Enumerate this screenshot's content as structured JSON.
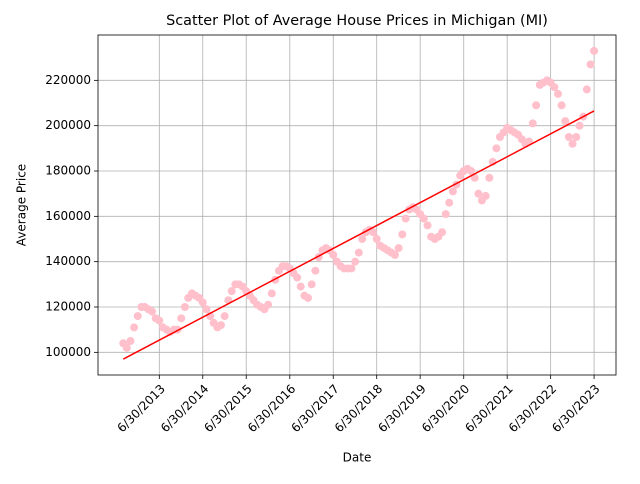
{
  "chart_data": {
    "type": "scatter",
    "title": "Scatter Plot of Average House Prices in Michigan (MI)",
    "x_label": "Date",
    "y_label": "Average Price",
    "x": [
      "8/31/2012",
      "9/30/2012",
      "10/31/2012",
      "11/30/2012",
      "12/31/2012",
      "1/31/2013",
      "2/28/2013",
      "3/31/2013",
      "4/30/2013",
      "5/31/2013",
      "6/30/2013",
      "7/31/2013",
      "8/31/2013",
      "9/30/2013",
      "10/31/2013",
      "11/30/2013",
      "12/31/2013",
      "1/31/2014",
      "2/28/2014",
      "3/31/2014",
      "4/30/2014",
      "5/31/2014",
      "6/30/2014",
      "7/31/2014",
      "8/31/2014",
      "9/30/2014",
      "10/31/2014",
      "11/30/2014",
      "12/31/2014",
      "1/31/2015",
      "2/28/2015",
      "3/31/2015",
      "4/30/2015",
      "5/31/2015",
      "6/30/2015",
      "7/31/2015",
      "8/31/2015",
      "9/30/2015",
      "10/31/2015",
      "11/30/2015",
      "12/31/2015",
      "1/31/2016",
      "2/29/2016",
      "3/31/2016",
      "4/30/2016",
      "5/31/2016",
      "6/30/2016",
      "7/31/2016",
      "8/31/2016",
      "9/30/2016",
      "10/31/2016",
      "11/30/2016",
      "12/31/2016",
      "1/31/2017",
      "2/28/2017",
      "3/31/2017",
      "4/30/2017",
      "5/31/2017",
      "6/30/2017",
      "7/31/2017",
      "8/31/2017",
      "9/30/2017",
      "10/31/2017",
      "11/30/2017",
      "12/31/2017",
      "1/31/2018",
      "2/28/2018",
      "3/31/2018",
      "4/30/2018",
      "5/31/2018",
      "6/30/2018",
      "7/31/2018",
      "8/31/2018",
      "9/30/2018",
      "10/31/2018",
      "11/30/2018",
      "12/31/2018",
      "1/31/2019",
      "2/28/2019",
      "3/31/2019",
      "4/30/2019",
      "5/31/2019",
      "6/30/2019",
      "7/31/2019",
      "8/31/2019",
      "9/30/2019",
      "10/31/2019",
      "11/30/2019",
      "12/31/2019",
      "1/31/2020",
      "2/29/2020",
      "3/31/2020",
      "4/30/2020",
      "5/31/2020",
      "6/30/2020",
      "7/31/2020",
      "8/31/2020",
      "9/30/2020",
      "10/31/2020",
      "11/30/2020",
      "12/31/2020",
      "1/31/2021",
      "2/28/2021",
      "3/31/2021",
      "4/30/2021",
      "5/31/2021",
      "6/30/2021",
      "7/31/2021",
      "8/31/2021",
      "9/30/2021",
      "10/31/2021",
      "11/30/2021",
      "12/31/2021",
      "1/31/2022",
      "2/28/2022",
      "3/31/2022",
      "4/30/2022",
      "5/31/2022",
      "6/30/2022",
      "7/31/2022",
      "8/31/2022",
      "9/30/2022",
      "10/31/2022",
      "11/30/2022",
      "12/31/2022",
      "1/31/2023",
      "2/28/2023",
      "3/31/2023",
      "4/30/2023",
      "5/31/2023",
      "6/30/2023"
    ],
    "values": [
      104000,
      102000,
      105000,
      111000,
      116000,
      120000,
      120000,
      119000,
      118000,
      115000,
      114000,
      111000,
      110000,
      109000,
      110000,
      110000,
      115000,
      120000,
      124000,
      126000,
      125000,
      124000,
      122000,
      119000,
      116000,
      113000,
      111000,
      112000,
      116000,
      123000,
      127000,
      130000,
      130000,
      129000,
      127000,
      125000,
      123000,
      121000,
      120000,
      119000,
      121000,
      126000,
      132000,
      136000,
      138000,
      138000,
      137000,
      135000,
      133000,
      129000,
      125000,
      124000,
      130000,
      136000,
      142000,
      145000,
      146000,
      145000,
      143000,
      140000,
      138000,
      137000,
      137000,
      137000,
      140000,
      144000,
      150000,
      153000,
      154000,
      153000,
      150000,
      147000,
      146000,
      145000,
      144000,
      143000,
      146000,
      152000,
      159000,
      163000,
      164000,
      163000,
      161000,
      159000,
      156000,
      151000,
      150000,
      151000,
      153000,
      161000,
      166000,
      171000,
      174000,
      178000,
      180000,
      181000,
      180000,
      177000,
      170000,
      167000,
      169000,
      177000,
      184000,
      190000,
      195000,
      197000,
      199000,
      198000,
      197000,
      196000,
      194000,
      192000,
      193000,
      201000,
      209000,
      218000,
      219000,
      220000,
      219000,
      217000,
      214000,
      209000,
      202000,
      195000,
      192000,
      195000,
      200000,
      204000,
      216000,
      227000,
      233000
    ],
    "color": "#ffc0cb",
    "trend_line": {
      "x": [
        "8/31/2012",
        "6/30/2023"
      ],
      "values": [
        97000,
        206500
      ],
      "color": "#ff0000"
    },
    "xlim": [
      "2/1/2012",
      "12/31/2023"
    ],
    "xticks": [
      "6/30/2013",
      "6/30/2014",
      "6/30/2015",
      "6/30/2016",
      "6/30/2017",
      "6/30/2018",
      "6/30/2019",
      "6/30/2020",
      "6/30/2021",
      "6/30/2022",
      "6/30/2023"
    ],
    "ylim": [
      90000,
      240000
    ],
    "yticks": [
      100000,
      120000,
      140000,
      160000,
      180000,
      200000,
      220000
    ],
    "grid": true
  }
}
